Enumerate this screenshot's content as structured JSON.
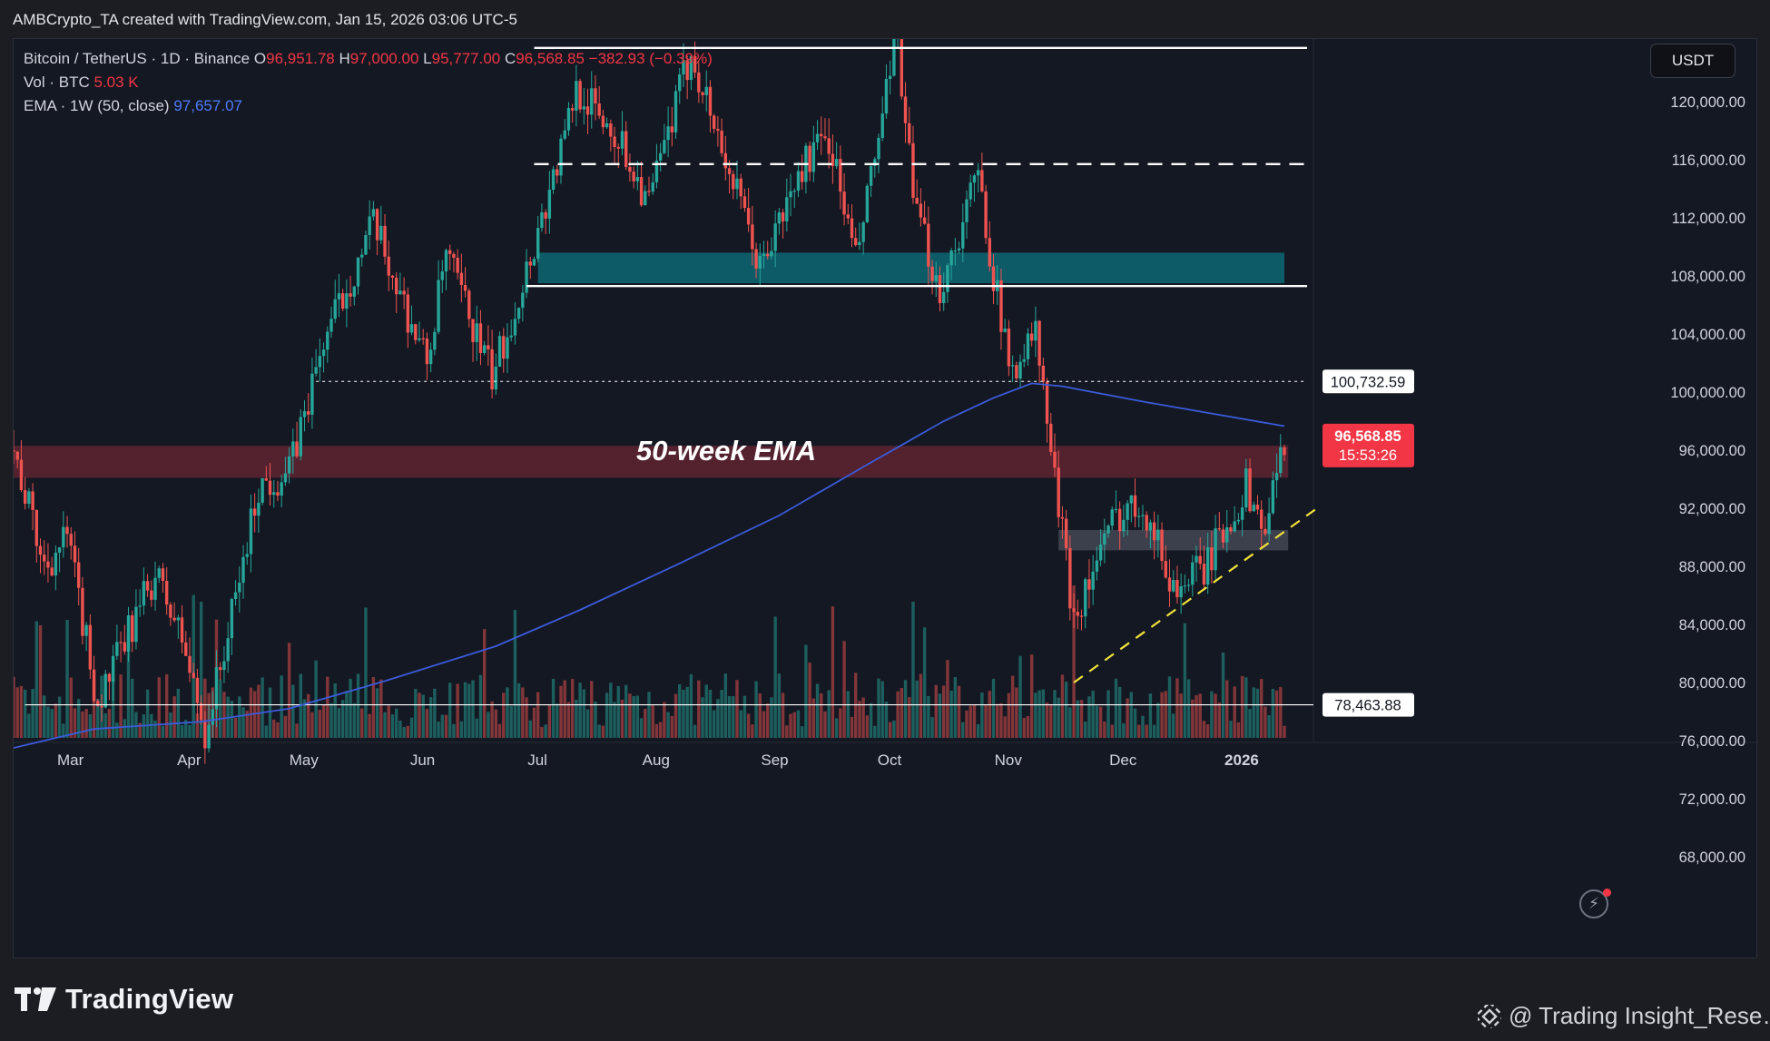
{
  "header": {
    "credit": "AMBCrypto_TA created with TradingView.com, Jan 15, 2026 03:06 UTC-5"
  },
  "legend": {
    "symbol": "Bitcoin / TetherUS · 1D · Binance",
    "o_label": "O",
    "o_value": "96,951.78",
    "h_label": "H",
    "h_value": "97,000.00",
    "l_label": "L",
    "l_value": "95,777.00",
    "c_label": "C",
    "c_value": "96,568.85",
    "change": "−382.93 (−0.39%)",
    "vol_label": "Vol · BTC",
    "vol_value": "5.03 K",
    "ema_label": "EMA · 1W (50, close)",
    "ema_value": "97,657.07"
  },
  "currency_button": "USDT",
  "footer": {
    "brand": "TradingView",
    "watermark": "@ Trading Insight_Rese…"
  },
  "colors": {
    "up": "#26a69a",
    "down": "#ef5350",
    "ema": "#3b5bdb",
    "red_zone": "#5a2330",
    "teal_zone": "#0e5f6d",
    "grey_zone": "#434854",
    "trendline": "#f2e33a",
    "price_tag": "#f23645",
    "background": "#141822"
  },
  "icons": [
    "tradingview-logo-icon",
    "binance-diamond-icon",
    "lightning-icon"
  ],
  "chart_data": {
    "type": "candlestick",
    "title": "Bitcoin / TetherUS · 1D · Binance",
    "annotations": [
      {
        "kind": "text",
        "text": "50-week EMA"
      }
    ],
    "price_axis": {
      "range": [
        65000,
        125500
      ],
      "ticks": [
        120000,
        116000,
        112000,
        108000,
        104000,
        100000,
        96000,
        92000,
        88000,
        84000,
        80000,
        76000,
        72000,
        68000
      ],
      "tick_labels": [
        "120,000.00",
        "116,000.00",
        "112,000.00",
        "108,000.00",
        "104,000.00",
        "100,000.00",
        "96,000.00",
        "92,000.00",
        "88,000.00",
        "84,000.00",
        "80,000.00",
        "76,000.00",
        "72,000.00",
        "68,000.00"
      ]
    },
    "time_axis": {
      "start": "2025-02-17",
      "end": "2026-01-15",
      "labels": [
        {
          "text": "Mar",
          "date": "2025-03-01"
        },
        {
          "text": "Apr",
          "date": "2025-04-01"
        },
        {
          "text": "May",
          "date": "2025-05-01"
        },
        {
          "text": "Jun",
          "date": "2025-06-01"
        },
        {
          "text": "Jul",
          "date": "2025-07-01"
        },
        {
          "text": "Aug",
          "date": "2025-08-01"
        },
        {
          "text": "Sep",
          "date": "2025-09-01"
        },
        {
          "text": "Oct",
          "date": "2025-10-01"
        },
        {
          "text": "Nov",
          "date": "2025-11-01"
        },
        {
          "text": "Dec",
          "date": "2025-12-01"
        },
        {
          "text": "2026",
          "date": "2026-01-01"
        }
      ]
    },
    "price_tags": [
      {
        "label": "100,732.59",
        "value": 100732.59,
        "style": "neutral"
      },
      {
        "label": "96,568.85",
        "sub": "15:53:26",
        "value": 96568.85,
        "style": "last"
      },
      {
        "label": "78,463.88",
        "value": 78463.88,
        "style": "neutral"
      }
    ],
    "horizontal_lines": [
      {
        "value": 123700,
        "from": "2025-07-03",
        "to": "2026-01-15",
        "style": "solid",
        "color": "#ffffff"
      },
      {
        "value": 115700,
        "from": "2025-07-03",
        "to": "2026-01-15",
        "style": "dashed",
        "color": "#ffffff"
      },
      {
        "value": 107300,
        "from": "2025-07-01",
        "to": "2026-01-15",
        "style": "solid",
        "color": "#ffffff"
      },
      {
        "value": 100732.59,
        "from": "2025-05-07",
        "to": "2026-01-15",
        "style": "dotted",
        "color": "#ffffff"
      },
      {
        "value": 78463.88,
        "from": "2025-02-20",
        "to": "2026-01-15",
        "style": "solid",
        "color": "#ffffff"
      }
    ],
    "zones": [
      {
        "name": "teal",
        "from": "2025-07-04",
        "to": "2026-01-15",
        "low": 107500,
        "high": 109600
      },
      {
        "name": "red",
        "from": "2025-02-17",
        "to": "2026-01-16",
        "low": 94100,
        "high": 96300
      },
      {
        "name": "grey",
        "from": "2025-11-17",
        "to": "2026-01-16",
        "low": 89100,
        "high": 90500
      }
    ],
    "trendline": {
      "from": {
        "date": "2025-11-21",
        "value": 80000
      },
      "to": {
        "date": "2026-01-23",
        "value": 91900
      }
    },
    "ema_series": [
      {
        "date": "2025-02-17",
        "value": 75500
      },
      {
        "date": "2025-03-10",
        "value": 76800
      },
      {
        "date": "2025-04-07",
        "value": 77300
      },
      {
        "date": "2025-04-30",
        "value": 78200
      },
      {
        "date": "2025-05-25",
        "value": 80100
      },
      {
        "date": "2025-06-23",
        "value": 82500
      },
      {
        "date": "2025-07-15",
        "value": 85000
      },
      {
        "date": "2025-08-10",
        "value": 88200
      },
      {
        "date": "2025-09-05",
        "value": 91500
      },
      {
        "date": "2025-09-28",
        "value": 95000
      },
      {
        "date": "2025-10-18",
        "value": 98000
      },
      {
        "date": "2025-10-31",
        "value": 99600
      },
      {
        "date": "2025-11-10",
        "value": 100600
      },
      {
        "date": "2025-11-18",
        "value": 100400
      },
      {
        "date": "2025-12-10",
        "value": 99300
      },
      {
        "date": "2026-01-15",
        "value": 97657.07
      }
    ],
    "close_series": [
      {
        "date": "2025-02-17",
        "value": 96000
      },
      {
        "date": "2025-02-25",
        "value": 88000
      },
      {
        "date": "2025-03-03",
        "value": 90000
      },
      {
        "date": "2025-03-11",
        "value": 78500
      },
      {
        "date": "2025-03-20",
        "value": 84000
      },
      {
        "date": "2025-03-26",
        "value": 87500
      },
      {
        "date": "2025-04-02",
        "value": 83000
      },
      {
        "date": "2025-04-08",
        "value": 76500
      },
      {
        "date": "2025-04-15",
        "value": 84500
      },
      {
        "date": "2025-04-22",
        "value": 93500
      },
      {
        "date": "2025-04-30",
        "value": 94500
      },
      {
        "date": "2025-05-09",
        "value": 103500
      },
      {
        "date": "2025-05-22",
        "value": 111500
      },
      {
        "date": "2025-06-05",
        "value": 102000
      },
      {
        "date": "2025-06-10",
        "value": 109500
      },
      {
        "date": "2025-06-22",
        "value": 101000
      },
      {
        "date": "2025-06-30",
        "value": 107500
      },
      {
        "date": "2025-07-11",
        "value": 117500
      },
      {
        "date": "2025-07-14",
        "value": 121000
      },
      {
        "date": "2025-07-25",
        "value": 117500
      },
      {
        "date": "2025-08-02",
        "value": 113000
      },
      {
        "date": "2025-08-13",
        "value": 123500
      },
      {
        "date": "2025-08-22",
        "value": 116000
      },
      {
        "date": "2025-08-31",
        "value": 108500
      },
      {
        "date": "2025-09-12",
        "value": 116000
      },
      {
        "date": "2025-09-18",
        "value": 117500
      },
      {
        "date": "2025-09-25",
        "value": 109000
      },
      {
        "date": "2025-10-06",
        "value": 124500
      },
      {
        "date": "2025-10-10",
        "value": 113000
      },
      {
        "date": "2025-10-17",
        "value": 107000
      },
      {
        "date": "2025-10-27",
        "value": 115000
      },
      {
        "date": "2025-11-04",
        "value": 101500
      },
      {
        "date": "2025-11-11",
        "value": 104000
      },
      {
        "date": "2025-11-17",
        "value": 92000
      },
      {
        "date": "2025-11-21",
        "value": 84500
      },
      {
        "date": "2025-12-02",
        "value": 91500
      },
      {
        "date": "2025-12-09",
        "value": 92500
      },
      {
        "date": "2025-12-17",
        "value": 86500
      },
      {
        "date": "2025-12-25",
        "value": 87800
      },
      {
        "date": "2026-01-05",
        "value": 93500
      },
      {
        "date": "2026-01-10",
        "value": 90500
      },
      {
        "date": "2026-01-15",
        "value": 96568.85
      }
    ]
  }
}
